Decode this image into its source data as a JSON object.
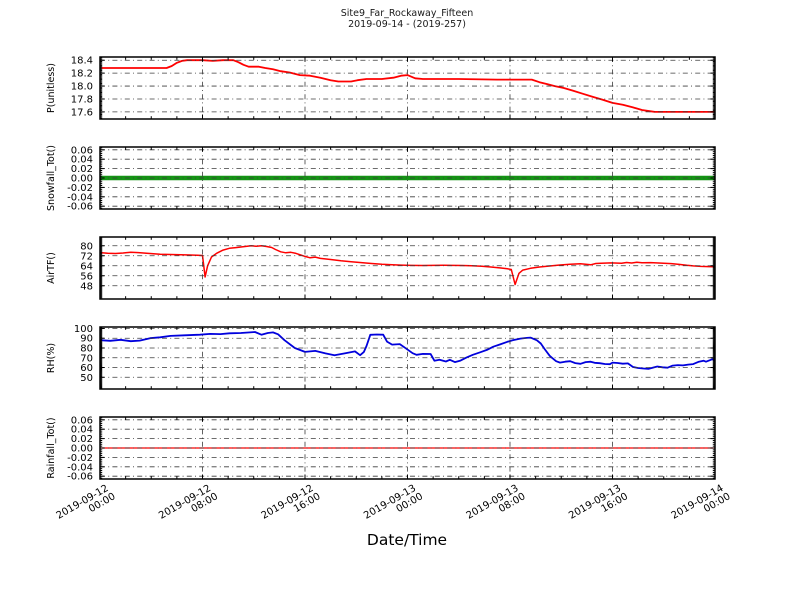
{
  "title": {
    "line1": "Site9_Far_Rockaway_Fifteen",
    "line2": "2019-09-14 - (2019-257)"
  },
  "x_axis_title": "Date/Time",
  "grid": {
    "color": "#3c3c3c",
    "dash": "5 3.2 1 3.2",
    "width": 0.8
  },
  "x_axis": {
    "lim": [
      0,
      48
    ],
    "major_step_hours": 8,
    "minor_step_hours": 2,
    "ticks": [
      {
        "h": 0,
        "date": "2019-09-12",
        "time": "00:00"
      },
      {
        "h": 8,
        "date": "2019-09-12",
        "time": "08:00"
      },
      {
        "h": 16,
        "date": "2019-09-12",
        "time": "16:00"
      },
      {
        "h": 24,
        "date": "2019-09-13",
        "time": "00:00"
      },
      {
        "h": 32,
        "date": "2019-09-13",
        "time": "08:00"
      },
      {
        "h": 40,
        "date": "2019-09-13",
        "time": "16:00"
      },
      {
        "h": 48,
        "date": "2019-09-14",
        "time": "00:00"
      }
    ]
  },
  "chart_data": [
    {
      "type": "line",
      "ylabel": "P(unitless)",
      "line_color": "#ff0000",
      "line_width": 1.8,
      "ylim": [
        17.49,
        18.45
      ],
      "yticks": [
        18.4,
        18.2,
        18.0,
        17.8,
        17.6
      ],
      "ytick_labels": [
        "18.4",
        "18.2",
        "18.0",
        "17.8",
        "17.6"
      ],
      "minor_step": 0.02,
      "series": [
        [
          0,
          18.28
        ],
        [
          5.2,
          18.28
        ],
        [
          5.6,
          18.31
        ],
        [
          6.0,
          18.36
        ],
        [
          6.4,
          18.39
        ],
        [
          6.8,
          18.4
        ],
        [
          8.0,
          18.4
        ],
        [
          8.8,
          18.39
        ],
        [
          9.6,
          18.4
        ],
        [
          10.4,
          18.4
        ],
        [
          10.8,
          18.37
        ],
        [
          11.2,
          18.33
        ],
        [
          11.6,
          18.3
        ],
        [
          12.4,
          18.3
        ],
        [
          12.9,
          18.28
        ],
        [
          13.5,
          18.26
        ],
        [
          14.1,
          18.23
        ],
        [
          14.8,
          18.21
        ],
        [
          15.6,
          18.17
        ],
        [
          16.4,
          18.16
        ],
        [
          17.2,
          18.13
        ],
        [
          18.0,
          18.09
        ],
        [
          18.6,
          18.07
        ],
        [
          19.6,
          18.07
        ],
        [
          20.1,
          18.09
        ],
        [
          20.8,
          18.11
        ],
        [
          22.0,
          18.11
        ],
        [
          22.9,
          18.13
        ],
        [
          23.5,
          18.16
        ],
        [
          24.0,
          18.17
        ],
        [
          24.6,
          18.12
        ],
        [
          25.2,
          18.11
        ],
        [
          28.0,
          18.11
        ],
        [
          31.0,
          18.1
        ],
        [
          33.7,
          18.1
        ],
        [
          34.3,
          18.06
        ],
        [
          34.9,
          18.03
        ],
        [
          35.5,
          18.0
        ],
        [
          36.2,
          17.97
        ],
        [
          36.9,
          17.93
        ],
        [
          37.7,
          17.88
        ],
        [
          38.5,
          17.83
        ],
        [
          39.2,
          17.79
        ],
        [
          40.0,
          17.74
        ],
        [
          40.8,
          17.71
        ],
        [
          41.6,
          17.67
        ],
        [
          42.3,
          17.63
        ],
        [
          42.9,
          17.61
        ],
        [
          43.3,
          17.6
        ],
        [
          48,
          17.6
        ]
      ]
    },
    {
      "type": "line",
      "ylabel": "Snowfall_Tot()",
      "line_color": "#149414",
      "line_width": 4.5,
      "ylim": [
        -0.066,
        0.066
      ],
      "yticks": [
        0.06,
        0.04,
        0.02,
        0.0,
        -0.02,
        -0.04,
        -0.06
      ],
      "ytick_labels": [
        "0.06",
        "0.04",
        "0.02",
        "0.00",
        "-0.02",
        "-0.04",
        "-0.06"
      ],
      "minor_step": 0.004,
      "series": [
        [
          0,
          0
        ],
        [
          48,
          0
        ]
      ]
    },
    {
      "type": "line",
      "ylabel": "AirTF()",
      "line_color": "#ff0000",
      "line_width": 1.5,
      "ylim": [
        37.4,
        87
      ],
      "yticks": [
        80,
        72,
        64,
        56,
        48
      ],
      "ytick_labels": [
        "80",
        "72",
        "64",
        "56",
        "48"
      ],
      "minor_step": 0.8,
      "series": [
        [
          0,
          74.5
        ],
        [
          0.6,
          74.0
        ],
        [
          1.2,
          73.8
        ],
        [
          1.8,
          74.2
        ],
        [
          2.4,
          74.8
        ],
        [
          3.0,
          74.5
        ],
        [
          3.9,
          73.8
        ],
        [
          4.7,
          73.2
        ],
        [
          5.5,
          73.0
        ],
        [
          6.3,
          72.8
        ],
        [
          7.0,
          72.6
        ],
        [
          7.6,
          72.4
        ],
        [
          8.0,
          72.2
        ],
        [
          8.2,
          55.0
        ],
        [
          8.4,
          64.0
        ],
        [
          8.7,
          71.0
        ],
        [
          9.1,
          74.0
        ],
        [
          9.6,
          76.5
        ],
        [
          10.1,
          78.0
        ],
        [
          10.6,
          78.5
        ],
        [
          11.0,
          79.0
        ],
        [
          11.4,
          79.5
        ],
        [
          11.8,
          80.0
        ],
        [
          12.2,
          79.6
        ],
        [
          12.6,
          80.0
        ],
        [
          13.0,
          79.4
        ],
        [
          13.4,
          78.6
        ],
        [
          13.7,
          77.0
        ],
        [
          14.1,
          75.2
        ],
        [
          14.5,
          74.4
        ],
        [
          14.9,
          74.8
        ],
        [
          15.3,
          73.9
        ],
        [
          16.0,
          71.5
        ],
        [
          16.4,
          70.4
        ],
        [
          16.8,
          70.9
        ],
        [
          17.2,
          69.9
        ],
        [
          18.0,
          69.0
        ],
        [
          18.8,
          68.0
        ],
        [
          19.6,
          67.2
        ],
        [
          20.4,
          66.5
        ],
        [
          21.2,
          65.8
        ],
        [
          22.0,
          65.2
        ],
        [
          22.8,
          64.8
        ],
        [
          23.5,
          64.5
        ],
        [
          24.3,
          64.3
        ],
        [
          25.1,
          64.2
        ],
        [
          26.0,
          64.3
        ],
        [
          26.8,
          64.4
        ],
        [
          27.5,
          64.3
        ],
        [
          28.3,
          64.2
        ],
        [
          29.0,
          64.0
        ],
        [
          29.8,
          63.6
        ],
        [
          30.5,
          63.0
        ],
        [
          31.3,
          62.2
        ],
        [
          31.8,
          61.6
        ],
        [
          32.1,
          61.0
        ],
        [
          32.4,
          49.0
        ],
        [
          32.7,
          58.0
        ],
        [
          33.0,
          60.5
        ],
        [
          33.6,
          62.0
        ],
        [
          34.3,
          63.0
        ],
        [
          35.1,
          63.8
        ],
        [
          35.9,
          64.6
        ],
        [
          36.7,
          65.2
        ],
        [
          37.5,
          65.6
        ],
        [
          37.9,
          65.2
        ],
        [
          38.3,
          64.8
        ],
        [
          38.7,
          65.8
        ],
        [
          39.1,
          66.0
        ],
        [
          39.9,
          66.3
        ],
        [
          40.7,
          66.0
        ],
        [
          41.1,
          66.6
        ],
        [
          41.5,
          66.2
        ],
        [
          41.9,
          66.8
        ],
        [
          42.3,
          66.4
        ],
        [
          43.0,
          66.5
        ],
        [
          43.8,
          66.1
        ],
        [
          44.6,
          65.7
        ],
        [
          45.2,
          65.1
        ],
        [
          45.8,
          64.4
        ],
        [
          46.3,
          63.9
        ],
        [
          46.9,
          63.5
        ],
        [
          47.5,
          63.3
        ],
        [
          48,
          63.2
        ]
      ]
    },
    {
      "type": "line",
      "ylabel": "RH(%)",
      "line_color": "#0000dd",
      "line_width": 1.8,
      "ylim": [
        38,
        101.5
      ],
      "yticks": [
        100,
        90,
        80,
        70,
        60,
        50
      ],
      "ytick_labels": [
        "100",
        "90",
        "80",
        "70",
        "60",
        "50"
      ],
      "minor_step": 1,
      "series": [
        [
          0,
          88
        ],
        [
          0.8,
          87.4
        ],
        [
          1.6,
          88.4
        ],
        [
          2.4,
          87.0
        ],
        [
          3.1,
          87.6
        ],
        [
          3.9,
          90.0
        ],
        [
          4.7,
          91.0
        ],
        [
          5.5,
          92.4
        ],
        [
          6.6,
          93.0
        ],
        [
          7.8,
          93.6
        ],
        [
          8.6,
          94.4
        ],
        [
          9.4,
          94.2
        ],
        [
          10.1,
          95.0
        ],
        [
          11.0,
          95.4
        ],
        [
          11.7,
          96.0
        ],
        [
          12.1,
          96.4
        ],
        [
          12.6,
          93.6
        ],
        [
          13.1,
          95.4
        ],
        [
          13.5,
          96.0
        ],
        [
          13.9,
          94.0
        ],
        [
          14.4,
          88.0
        ],
        [
          15.2,
          80.0
        ],
        [
          16.0,
          76.0
        ],
        [
          16.8,
          77.0
        ],
        [
          17.6,
          74.5
        ],
        [
          18.3,
          72.5
        ],
        [
          19.1,
          74.5
        ],
        [
          19.9,
          76.5
        ],
        [
          20.3,
          72.6
        ],
        [
          20.6,
          76.0
        ],
        [
          20.8,
          82.0
        ],
        [
          21.1,
          93.5
        ],
        [
          21.6,
          93.8
        ],
        [
          22.1,
          93.6
        ],
        [
          22.4,
          86.5
        ],
        [
          22.8,
          83.5
        ],
        [
          23.4,
          84.0
        ],
        [
          23.8,
          80.3
        ],
        [
          24.4,
          74.7
        ],
        [
          24.7,
          73.0
        ],
        [
          25.2,
          74.0
        ],
        [
          25.8,
          73.8
        ],
        [
          26.1,
          67.0
        ],
        [
          26.5,
          67.9
        ],
        [
          27.0,
          66.2
        ],
        [
          27.3,
          67.9
        ],
        [
          27.7,
          65.5
        ],
        [
          28.1,
          66.9
        ],
        [
          28.6,
          70.2
        ],
        [
          29.1,
          73.0
        ],
        [
          29.7,
          75.7
        ],
        [
          30.2,
          78.0
        ],
        [
          30.7,
          81.3
        ],
        [
          31.2,
          83.6
        ],
        [
          31.8,
          86.3
        ],
        [
          32.2,
          87.9
        ],
        [
          32.8,
          89.6
        ],
        [
          33.3,
          90.3
        ],
        [
          33.6,
          90.6
        ],
        [
          34.1,
          87.9
        ],
        [
          34.4,
          84.6
        ],
        [
          34.7,
          79.0
        ],
        [
          35.1,
          72.0
        ],
        [
          35.3,
          69.6
        ],
        [
          35.6,
          66.5
        ],
        [
          35.9,
          65.0
        ],
        [
          36.3,
          66.0
        ],
        [
          36.7,
          66.5
        ],
        [
          37.1,
          64.5
        ],
        [
          37.5,
          63.8
        ],
        [
          37.9,
          65.5
        ],
        [
          38.3,
          66.0
        ],
        [
          38.6,
          64.8
        ],
        [
          39.0,
          64.4
        ],
        [
          39.4,
          63.6
        ],
        [
          39.8,
          63.4
        ],
        [
          40.0,
          65.0
        ],
        [
          40.4,
          64.6
        ],
        [
          40.8,
          63.9
        ],
        [
          41.2,
          64.2
        ],
        [
          41.6,
          60.5
        ],
        [
          42.0,
          59.5
        ],
        [
          42.4,
          59.0
        ],
        [
          42.8,
          58.6
        ],
        [
          43.2,
          60.0
        ],
        [
          43.5,
          61.0
        ],
        [
          43.9,
          60.2
        ],
        [
          44.3,
          59.8
        ],
        [
          44.7,
          62.0
        ],
        [
          45.1,
          62.5
        ],
        [
          45.5,
          62.2
        ],
        [
          45.9,
          63.0
        ],
        [
          46.3,
          63.5
        ],
        [
          46.7,
          65.8
        ],
        [
          47.1,
          67.0
        ],
        [
          47.3,
          66.0
        ],
        [
          47.6,
          67.5
        ],
        [
          47.8,
          68.5
        ],
        [
          48,
          67.0
        ]
      ]
    },
    {
      "type": "line",
      "ylabel": "Rainfall_Tot()",
      "line_color": "#ff0000",
      "line_width": 1.3,
      "ylim": [
        -0.066,
        0.066
      ],
      "yticks": [
        0.06,
        0.04,
        0.02,
        0.0,
        -0.02,
        -0.04,
        -0.06
      ],
      "ytick_labels": [
        "0.06",
        "0.04",
        "0.02",
        "0.00",
        "-0.02",
        "-0.04",
        "-0.06"
      ],
      "minor_step": 0.004,
      "series": [
        [
          0,
          0
        ],
        [
          48,
          0
        ]
      ]
    }
  ]
}
